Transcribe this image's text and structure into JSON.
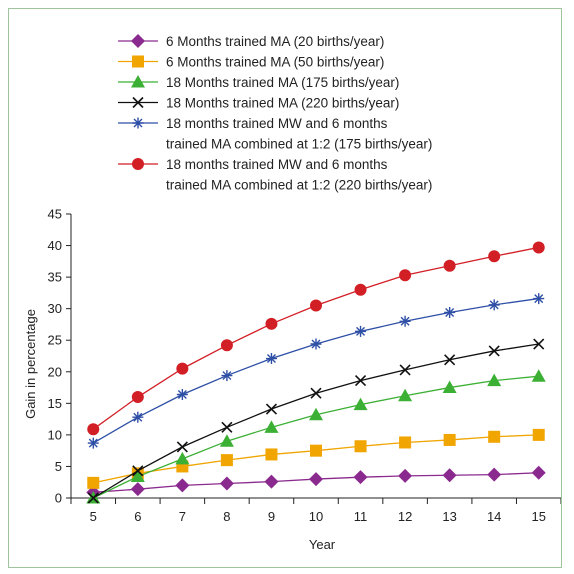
{
  "chart_data": {
    "type": "line",
    "title": "",
    "xlabel": "Year",
    "ylabel": "Gain in percentage",
    "x": [
      5,
      6,
      7,
      8,
      9,
      10,
      11,
      12,
      13,
      14,
      15
    ],
    "xlim": [
      4.5,
      15.5
    ],
    "ylim": [
      0,
      45
    ],
    "x_ticks": [
      5,
      6,
      7,
      8,
      9,
      10,
      11,
      12,
      13,
      14,
      15
    ],
    "y_ticks": [
      0,
      5,
      10,
      15,
      20,
      25,
      30,
      35,
      40,
      45
    ],
    "grid": false,
    "legend_position": "top",
    "series": [
      {
        "legend_lines": [
          "6 Months trained MA (20 births/year)"
        ],
        "color": "#8b2a8e",
        "marker": "diamond",
        "values": [
          0.9,
          1.4,
          2.0,
          2.3,
          2.6,
          3.0,
          3.3,
          3.5,
          3.6,
          3.7,
          4.0
        ]
      },
      {
        "legend_lines": [
          "6 Months trained MA (50 births/year)"
        ],
        "color": "#f0a500",
        "marker": "square",
        "values": [
          2.4,
          3.9,
          5.0,
          6.0,
          6.9,
          7.5,
          8.2,
          8.8,
          9.2,
          9.7,
          10.0
        ]
      },
      {
        "legend_lines": [
          "18 Months trained MA (175 births/year)"
        ],
        "color": "#3cb034",
        "marker": "triangle",
        "values": [
          0.0,
          3.4,
          6.2,
          9.0,
          11.2,
          13.2,
          14.8,
          16.2,
          17.5,
          18.6,
          19.3
        ]
      },
      {
        "legend_lines": [
          "18 Months trained MA (220 births/year)"
        ],
        "color": "#111111",
        "marker": "x",
        "values": [
          0.0,
          4.3,
          8.1,
          11.2,
          14.1,
          16.6,
          18.6,
          20.3,
          21.9,
          23.3,
          24.4
        ]
      },
      {
        "legend_lines": [
          "18 months trained MW and 6 months",
          "trained MA combined at 1:2 (175 births/year)"
        ],
        "color": "#2e4fa6",
        "marker": "asterisk",
        "values": [
          8.7,
          12.8,
          16.4,
          19.4,
          22.1,
          24.4,
          26.4,
          28.0,
          29.4,
          30.6,
          31.6
        ]
      },
      {
        "legend_lines": [
          "18 months trained MW and 6 months",
          "trained MA combined at 1:2 (220 births/year)"
        ],
        "color": "#d21f26",
        "marker": "circle",
        "values": [
          10.9,
          16.0,
          20.5,
          24.2,
          27.6,
          30.5,
          33.0,
          35.3,
          36.8,
          38.3,
          39.7
        ]
      }
    ]
  }
}
